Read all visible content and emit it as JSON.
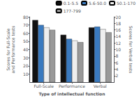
{
  "chart_data": {
    "type": "bar",
    "categories": [
      "Full-Scale",
      "Performance",
      "Verbal"
    ],
    "series": [
      {
        "name": "0.1-5.5",
        "color": "#111111",
        "values": [
          76,
          58,
          67
        ]
      },
      {
        "name": "5.6-50.0",
        "color": "#3a7abf",
        "values": [
          70,
          53,
          68
        ]
      },
      {
        "name": "50.1-170",
        "color": "#eeeeee",
        "values": [
          67,
          51,
          65
        ]
      },
      {
        "name": "177-799",
        "color": "#999999",
        "values": [
          64,
          49,
          61
        ]
      }
    ],
    "xlabel": "Type of intellectual function",
    "ylabel": "Scores for Full-Scale\nand Performance tests",
    "y2label": "Scores for Verbal tests",
    "ylim": [
      0,
      80
    ],
    "yticks": [
      10,
      20,
      30,
      40,
      50,
      60,
      70,
      80
    ],
    "y2lim": [
      0,
      20
    ],
    "y2ticks": [
      2,
      4,
      6,
      8,
      10,
      12,
      14,
      16,
      18,
      20
    ],
    "grid": false,
    "legend": "upper right"
  }
}
